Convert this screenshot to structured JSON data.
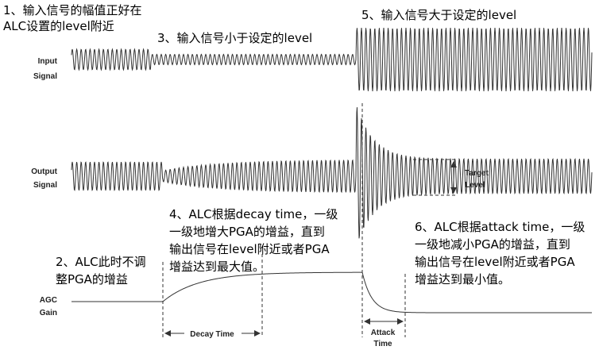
{
  "annotations": [
    {
      "lines": [
        "1、输入信号的幅值正好在",
        "ALC设置的level附近"
      ]
    },
    {
      "lines": [
        "2、ALC此时不调",
        "整PGA的增益"
      ]
    },
    {
      "lines": [
        "3、输入信号小于设定的level"
      ]
    },
    {
      "lines": [
        "4、ALC根据decay time，一级",
        "一级地增大PGA的增益，直到",
        "输出信号在level附近或者PGA",
        "增益达到最大值。"
      ]
    },
    {
      "lines": [
        "5、输入信号大于设定的level"
      ]
    },
    {
      "lines": [
        "6、ALC根据attack time，一级",
        "一级地减小PGA的增益，直到",
        "输出信号在level附近或者PGA",
        "增益达到最小值。"
      ]
    }
  ],
  "signals": {
    "input": [
      "Input",
      "Signal"
    ],
    "output": [
      "Output",
      "Signal"
    ],
    "gain": [
      "AGC",
      "Gain"
    ]
  },
  "target_level": [
    "Target",
    "Level"
  ],
  "decay_time": "Decay Time",
  "attack_time": [
    "Attack",
    "Time"
  ]
}
